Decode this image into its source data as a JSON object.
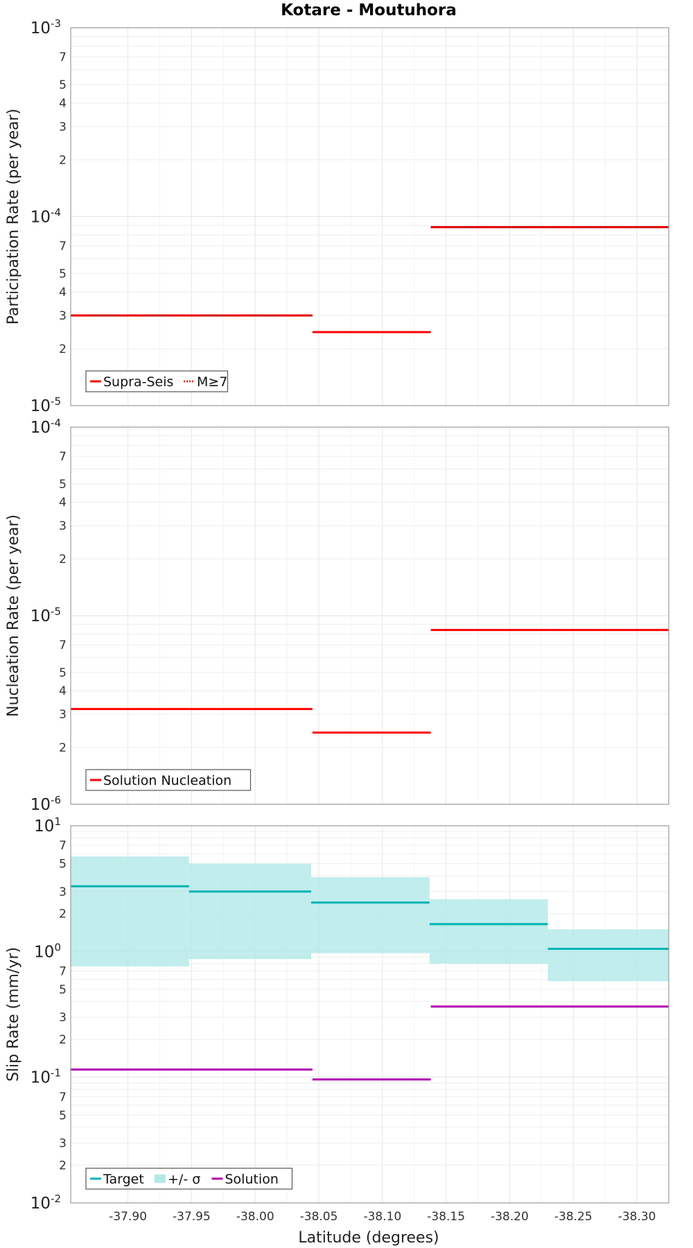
{
  "chart_data": {
    "title": "Kotare - Moutuhora",
    "xlabel": "Latitude (degrees)",
    "xlim": [
      -37.855,
      -38.325
    ],
    "xticks": [
      "-37.90",
      "-37.95",
      "-38.00",
      "-38.05",
      "-38.10",
      "-38.15",
      "-38.20",
      "-38.25",
      "-38.30"
    ],
    "xtick_values": [
      -37.9,
      -37.95,
      -38.0,
      -38.05,
      -38.1,
      -38.15,
      -38.2,
      -38.25,
      -38.3
    ],
    "panels": [
      {
        "type": "line",
        "ylabel": "Participation Rate (per year)",
        "yscale": "log",
        "ylim_exp": [
          -5,
          -3
        ],
        "decade_labels": [
          "10-5",
          "10-4",
          "10-3"
        ],
        "minor_labels": [
          "2",
          "3",
          "4",
          "5",
          "7"
        ],
        "series": [
          {
            "name": "Supra-Seis",
            "color": "#ff0000",
            "style": "solid",
            "segments": [
              {
                "x": [
                  -37.855,
                  -37.948
                ],
                "y": 3e-05
              },
              {
                "x": [
                  -37.948,
                  -38.045
                ],
                "y": 3e-05
              },
              {
                "x": [
                  -38.045,
                  -38.138
                ],
                "y": 2.45e-05
              },
              {
                "x": [
                  -38.138,
                  -38.232
                ],
                "y": 8.8e-05
              },
              {
                "x": [
                  -38.232,
                  -38.325
                ],
                "y": 8.8e-05
              }
            ]
          },
          {
            "name": "M≥7",
            "color": "#ff0000",
            "style": "dotted",
            "segments": [
              {
                "x": [
                  -37.855,
                  -37.948
                ],
                "y": 3e-05
              },
              {
                "x": [
                  -37.948,
                  -38.045
                ],
                "y": 3e-05
              },
              {
                "x": [
                  -38.138,
                  -38.232
                ],
                "y": 8.8e-05
              },
              {
                "x": [
                  -38.232,
                  -38.325
                ],
                "y": 8.8e-05
              }
            ]
          }
        ],
        "legend": [
          {
            "label": "Supra-Seis",
            "kind": "solid",
            "color": "#ff0000"
          },
          {
            "label": "M≥7",
            "kind": "dotted",
            "color": "#ff0000"
          }
        ]
      },
      {
        "type": "line",
        "ylabel": "Nucleation Rate (per year)",
        "yscale": "log",
        "ylim_exp": [
          -6,
          -4
        ],
        "decade_labels": [
          "10-6",
          "10-5",
          "10-4"
        ],
        "minor_labels": [
          "2",
          "3",
          "4",
          "5",
          "7"
        ],
        "series": [
          {
            "name": "Solution Nucleation",
            "color": "#ff0000",
            "style": "solid",
            "segments": [
              {
                "x": [
                  -37.855,
                  -37.948
                ],
                "y": 3.2e-06
              },
              {
                "x": [
                  -37.948,
                  -38.045
                ],
                "y": 3.2e-06
              },
              {
                "x": [
                  -38.045,
                  -38.138
                ],
                "y": 2.4e-06
              },
              {
                "x": [
                  -38.138,
                  -38.232
                ],
                "y": 8.4e-06
              },
              {
                "x": [
                  -38.232,
                  -38.325
                ],
                "y": 8.4e-06
              }
            ]
          }
        ],
        "legend": [
          {
            "label": "Solution Nucleation",
            "kind": "solid",
            "color": "#ff0000"
          }
        ]
      },
      {
        "type": "line",
        "ylabel": "Slip Rate (mm/yr)",
        "yscale": "log",
        "ylim_exp": [
          -2,
          1
        ],
        "decade_labels": [
          "10-2",
          "10-1",
          "100",
          "101"
        ],
        "minor_labels": [
          "2",
          "3",
          "5",
          "7"
        ],
        "bands": [
          {
            "x": [
              -37.855,
              -37.948
            ],
            "low": 0.76,
            "high": 5.7
          },
          {
            "x": [
              -37.948,
              -38.044
            ],
            "low": 0.87,
            "high": 5.0
          },
          {
            "x": [
              -38.044,
              -38.137
            ],
            "low": 0.97,
            "high": 3.9
          },
          {
            "x": [
              -38.137,
              -38.23
            ],
            "low": 0.8,
            "high": 2.6
          },
          {
            "x": [
              -38.23,
              -38.325
            ],
            "low": 0.58,
            "high": 1.5
          }
        ],
        "series": [
          {
            "name": "Target",
            "color": "#00b2b2",
            "style": "solid",
            "segments": [
              {
                "x": [
                  -37.855,
                  -37.948
                ],
                "y": 3.3
              },
              {
                "x": [
                  -37.948,
                  -38.044
                ],
                "y": 3.0
              },
              {
                "x": [
                  -38.044,
                  -38.137
                ],
                "y": 2.45
              },
              {
                "x": [
                  -38.137,
                  -38.23
                ],
                "y": 1.65
              },
              {
                "x": [
                  -38.23,
                  -38.325
                ],
                "y": 1.05
              }
            ]
          },
          {
            "name": "Solution",
            "color": "#b200b2",
            "style": "solid",
            "segments": [
              {
                "x": [
                  -37.855,
                  -37.948
                ],
                "y": 0.115
              },
              {
                "x": [
                  -37.948,
                  -38.045
                ],
                "y": 0.115
              },
              {
                "x": [
                  -38.045,
                  -38.138
                ],
                "y": 0.096
              },
              {
                "x": [
                  -38.138,
                  -38.232
                ],
                "y": 0.365
              },
              {
                "x": [
                  -38.232,
                  -38.325
                ],
                "y": 0.365
              }
            ]
          }
        ],
        "legend": [
          {
            "label": "Target",
            "kind": "solid",
            "color": "#00b2b2"
          },
          {
            "label": "+/- σ",
            "kind": "band",
            "color": "#b2e8e8"
          },
          {
            "label": "Solution",
            "kind": "solid",
            "color": "#b200b2"
          }
        ]
      }
    ]
  }
}
